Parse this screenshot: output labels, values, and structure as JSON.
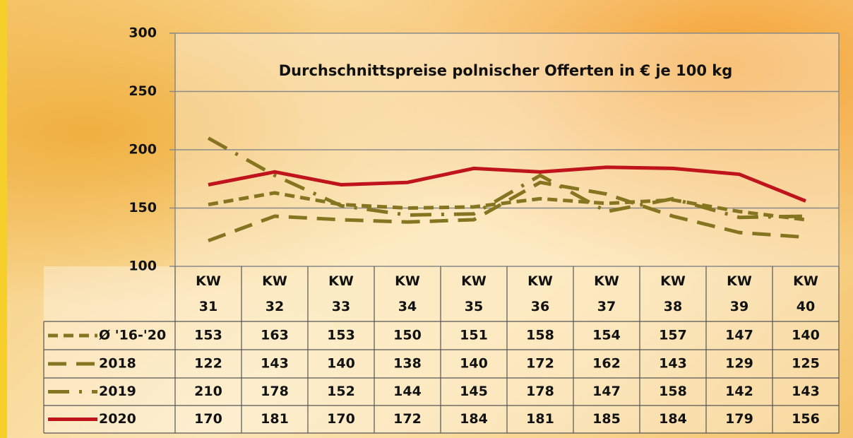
{
  "chart_data": {
    "type": "line",
    "title": "Durchschnittspreise polnischer Offerten in € je 100 kg",
    "categories": [
      "KW 31",
      "KW 32",
      "KW 33",
      "KW 34",
      "KW 35",
      "KW 36",
      "KW 37",
      "KW 38",
      "KW 39",
      "KW 40"
    ],
    "ylim": [
      100,
      300
    ],
    "yticks": [
      100,
      150,
      200,
      250,
      300
    ],
    "grid": true,
    "series": [
      {
        "name": "Ø '16-'20",
        "color": "#857520",
        "dash": "14 8",
        "values": [
          153,
          163,
          153,
          150,
          151,
          158,
          154,
          157,
          147,
          140
        ]
      },
      {
        "name": "2018",
        "color": "#857520",
        "dash": "26 14",
        "values": [
          122,
          143,
          140,
          138,
          140,
          172,
          162,
          143,
          129,
          125
        ]
      },
      {
        "name": "2019",
        "color": "#857520",
        "dash": "30 14 4 14",
        "values": [
          210,
          178,
          152,
          144,
          145,
          178,
          147,
          158,
          142,
          143
        ]
      },
      {
        "name": "2020",
        "color": "#c0141c",
        "dash": "",
        "values": [
          170,
          181,
          170,
          172,
          184,
          181,
          185,
          184,
          179,
          156
        ]
      }
    ]
  }
}
